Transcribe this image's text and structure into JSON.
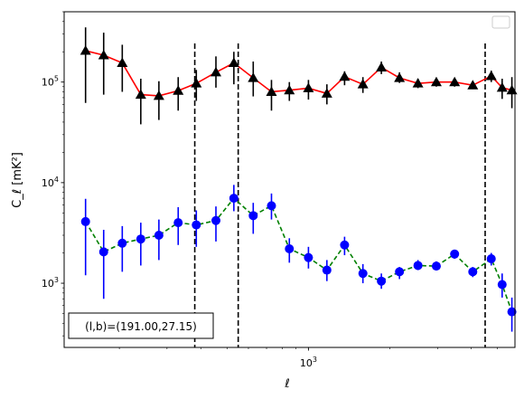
{
  "chart_data": {
    "type": "scatter",
    "title": "",
    "xlabel": "ℓ",
    "ylabel": "C_ℓ  [mK²]",
    "x_scale": "log",
    "y_scale": "log",
    "xlim": [
      125,
      5800
    ],
    "ylim": [
      230,
      500000
    ],
    "x_tick_labels": [
      {
        "value": 1000,
        "base": "10",
        "exp": "3"
      }
    ],
    "y_tick_labels": [
      {
        "value": 1000,
        "base": "10",
        "exp": "3"
      },
      {
        "value": 10000,
        "base": "10",
        "exp": "4"
      },
      {
        "value": 100000,
        "base": "10",
        "exp": "5"
      }
    ],
    "grid": false,
    "legend": "upper right (empty)",
    "vertical_lines_x": [
      380,
      550,
      4500
    ],
    "annotation": "(l,b)=(191.00,27.15)",
    "series": [
      {
        "marker": "triangle",
        "line_style": "solid",
        "line_color": "#ff0000",
        "marker_color": "#000000",
        "error_color": "#000000",
        "points": [
          {
            "x": 150,
            "y": 205000,
            "lo": 62000,
            "hi": 350000
          },
          {
            "x": 175,
            "y": 185000,
            "lo": 75000,
            "hi": 310000
          },
          {
            "x": 205,
            "y": 155000,
            "lo": 80000,
            "hi": 235000
          },
          {
            "x": 240,
            "y": 75000,
            "lo": 38000,
            "hi": 108000
          },
          {
            "x": 280,
            "y": 73000,
            "lo": 42000,
            "hi": 102000
          },
          {
            "x": 330,
            "y": 82000,
            "lo": 52000,
            "hi": 112000
          },
          {
            "x": 385,
            "y": 97000,
            "lo": 65000,
            "hi": 132000
          },
          {
            "x": 455,
            "y": 125000,
            "lo": 88000,
            "hi": 180000
          },
          {
            "x": 530,
            "y": 155000,
            "lo": 95000,
            "hi": 200000
          },
          {
            "x": 625,
            "y": 110000,
            "lo": 72000,
            "hi": 160000
          },
          {
            "x": 730,
            "y": 80000,
            "lo": 52000,
            "hi": 105000
          },
          {
            "x": 850,
            "y": 83000,
            "lo": 65000,
            "hi": 100000
          },
          {
            "x": 1000,
            "y": 87000,
            "lo": 67000,
            "hi": 105000
          },
          {
            "x": 1170,
            "y": 77000,
            "lo": 60000,
            "hi": 95000
          },
          {
            "x": 1360,
            "y": 113000,
            "lo": 93000,
            "hi": 128000
          },
          {
            "x": 1590,
            "y": 95000,
            "lo": 78000,
            "hi": 112000
          },
          {
            "x": 1860,
            "y": 140000,
            "lo": 120000,
            "hi": 160000
          },
          {
            "x": 2170,
            "y": 110000,
            "lo": 98000,
            "hi": 125000
          },
          {
            "x": 2540,
            "y": 97000,
            "lo": 87000,
            "hi": 108000
          },
          {
            "x": 2970,
            "y": 100000,
            "lo": 90000,
            "hi": 110000
          },
          {
            "x": 3470,
            "y": 100000,
            "lo": 90000,
            "hi": 110000
          },
          {
            "x": 4050,
            "y": 93000,
            "lo": 85000,
            "hi": 101000
          },
          {
            "x": 4740,
            "y": 115000,
            "lo": 100000,
            "hi": 130000
          },
          {
            "x": 5200,
            "y": 88000,
            "lo": 68000,
            "hi": 108000
          },
          {
            "x": 5650,
            "y": 83000,
            "lo": 55000,
            "hi": 112000
          }
        ]
      },
      {
        "marker": "circle",
        "line_style": "dashed",
        "line_color": "#008000",
        "marker_color": "#0000ff",
        "error_color": "#0000ff",
        "points": [
          {
            "x": 150,
            "y": 4100,
            "lo": 1200,
            "hi": 6900
          },
          {
            "x": 175,
            "y": 2050,
            "lo": 700,
            "hi": 3400
          },
          {
            "x": 205,
            "y": 2500,
            "lo": 1300,
            "hi": 3700
          },
          {
            "x": 240,
            "y": 2750,
            "lo": 1500,
            "hi": 4000
          },
          {
            "x": 280,
            "y": 3000,
            "lo": 1700,
            "hi": 4300
          },
          {
            "x": 330,
            "y": 4000,
            "lo": 2400,
            "hi": 5700
          },
          {
            "x": 385,
            "y": 3800,
            "lo": 2300,
            "hi": 5300
          },
          {
            "x": 455,
            "y": 4200,
            "lo": 2600,
            "hi": 5800
          },
          {
            "x": 530,
            "y": 7000,
            "lo": 5200,
            "hi": 9500
          },
          {
            "x": 625,
            "y": 4700,
            "lo": 3100,
            "hi": 6300
          },
          {
            "x": 730,
            "y": 5900,
            "lo": 4300,
            "hi": 7800
          },
          {
            "x": 850,
            "y": 2200,
            "lo": 1600,
            "hi": 2800
          },
          {
            "x": 1000,
            "y": 1800,
            "lo": 1400,
            "hi": 2300
          },
          {
            "x": 1170,
            "y": 1350,
            "lo": 1050,
            "hi": 1700
          },
          {
            "x": 1360,
            "y": 2400,
            "lo": 1900,
            "hi": 2900
          },
          {
            "x": 1590,
            "y": 1250,
            "lo": 1000,
            "hi": 1550
          },
          {
            "x": 1860,
            "y": 1050,
            "lo": 880,
            "hi": 1250
          },
          {
            "x": 2170,
            "y": 1300,
            "lo": 1100,
            "hi": 1450
          },
          {
            "x": 2540,
            "y": 1500,
            "lo": 1350,
            "hi": 1700
          },
          {
            "x": 2970,
            "y": 1480,
            "lo": 1350,
            "hi": 1650
          },
          {
            "x": 3470,
            "y": 1950,
            "lo": 1750,
            "hi": 2150
          },
          {
            "x": 4050,
            "y": 1300,
            "lo": 1150,
            "hi": 1450
          },
          {
            "x": 4740,
            "y": 1750,
            "lo": 1500,
            "hi": 2000
          },
          {
            "x": 5200,
            "y": 970,
            "lo": 720,
            "hi": 1250
          },
          {
            "x": 5650,
            "y": 520,
            "lo": 330,
            "hi": 720
          }
        ]
      }
    ]
  }
}
